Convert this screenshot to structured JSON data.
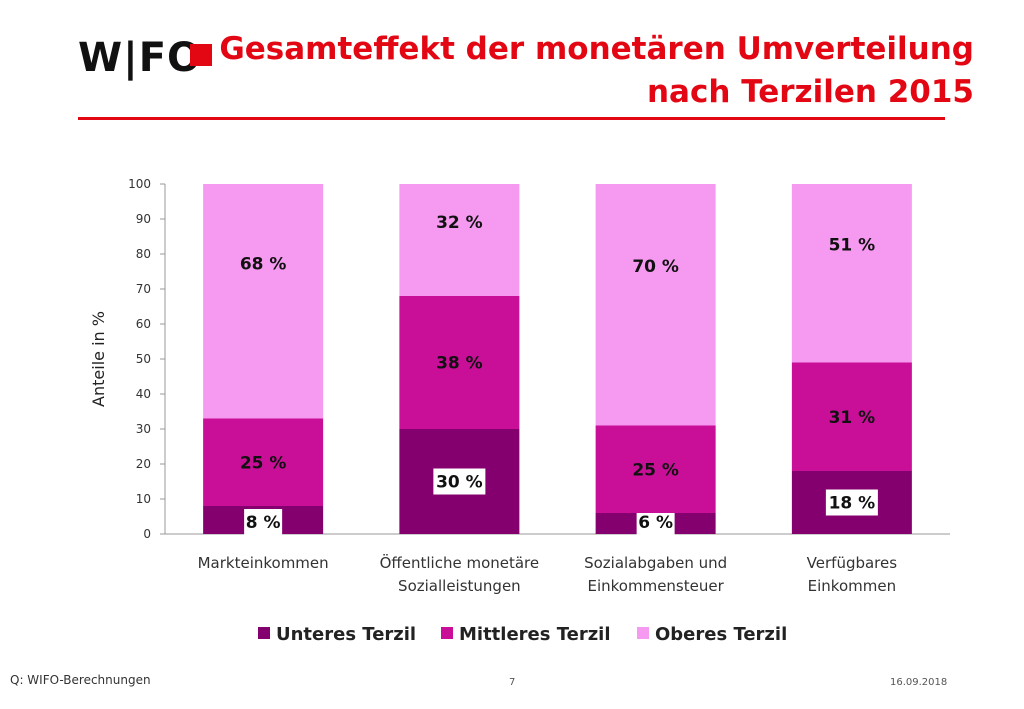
{
  "header": {
    "logo_text": "W|FO",
    "title_line1": "Gesamteffekt der monetären Umverteilung",
    "title_line2": "nach Terzilen 2015"
  },
  "colors": {
    "brand_red": "#e30613",
    "unteres": "#85006f",
    "mittleres": "#c90f98",
    "oberes": "#f59af0"
  },
  "chart_data": {
    "type": "bar",
    "stacked": true,
    "categories": [
      [
        "Markteinkommen"
      ],
      [
        "Öffentliche monetäre",
        "Sozialleistungen"
      ],
      [
        "Sozialabgaben und",
        "Einkommensteuer"
      ],
      [
        "Verfügbares",
        "Einkommen"
      ]
    ],
    "series": [
      {
        "name": "Unteres Terzil",
        "values": [
          8,
          30,
          6,
          18
        ],
        "labels": [
          "8 %",
          "30 %",
          "6 %",
          "18 %"
        ],
        "color": "#85006f"
      },
      {
        "name": "Mittleres Terzil",
        "values": [
          25,
          38,
          25,
          31
        ],
        "labels": [
          "25 %",
          "38 %",
          "25 %",
          "31 %"
        ],
        "color": "#c90f98"
      },
      {
        "name": "Oberes Terzil",
        "values": [
          68,
          32,
          70,
          51
        ],
        "labels": [
          "68 %",
          "32 %",
          "70 %",
          "51 %"
        ],
        "color": "#f59af0"
      }
    ],
    "ylabel": "Anteile in %",
    "ylim": [
      0,
      100
    ],
    "yticks": [
      0,
      10,
      20,
      30,
      40,
      50,
      60,
      70,
      80,
      90,
      100
    ],
    "legend_position": "bottom"
  },
  "footer": {
    "source": "Q: WIFO-Berechnungen",
    "page": "7",
    "date": "16.09.2018"
  }
}
